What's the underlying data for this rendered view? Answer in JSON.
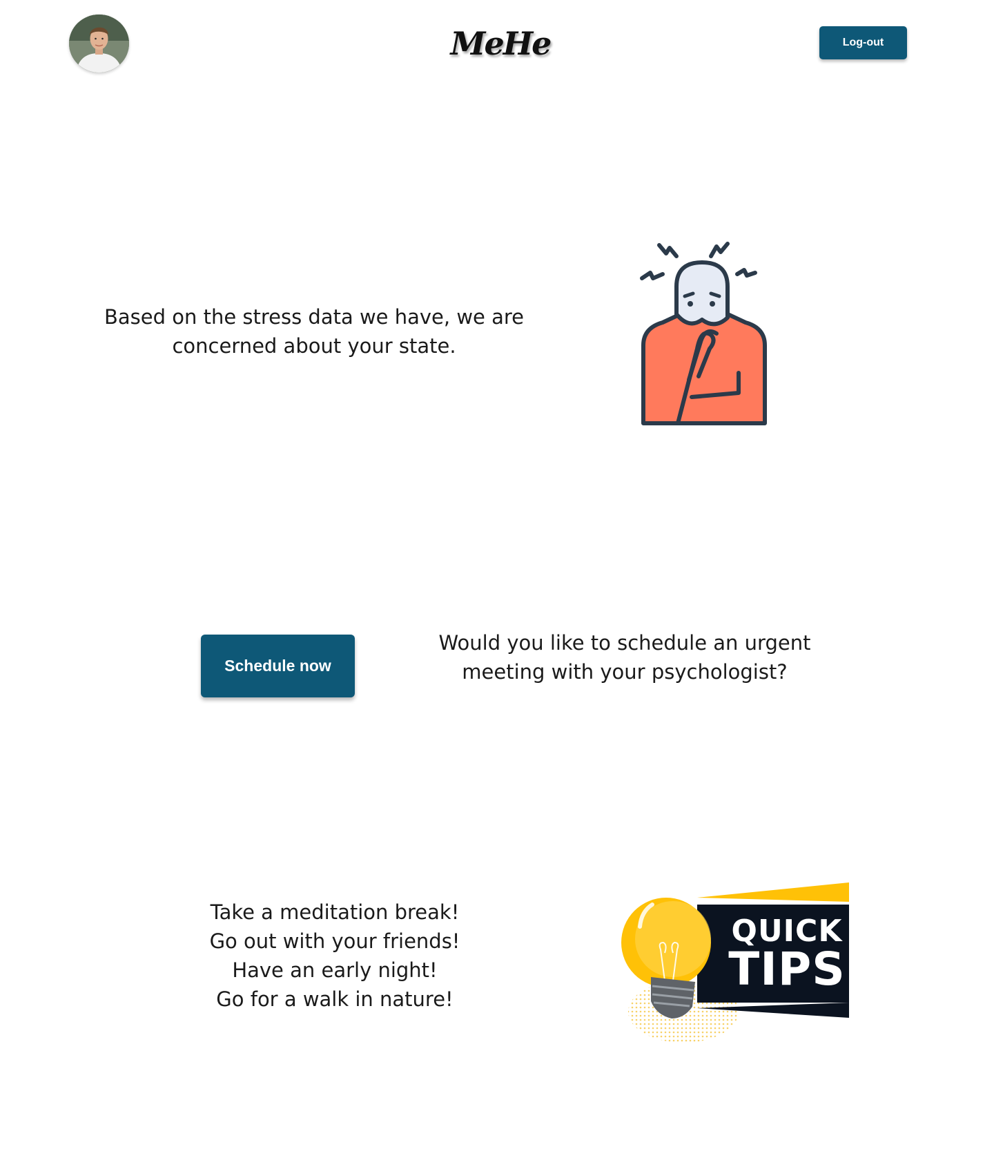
{
  "header": {
    "logo": "MeHe",
    "logout_label": "Log-out"
  },
  "concern": {
    "message": "Based on the stress data we have, we are concerned about your state."
  },
  "schedule": {
    "button_label": "Schedule now",
    "question": "Would you like to schedule an urgent meeting with your psychologist?"
  },
  "tips": {
    "items": [
      "Take a meditation break!",
      "Go out with your friends!",
      "Have an early night!",
      "Go for a walk in nature!"
    ],
    "badge_line1": "QUICK",
    "badge_line2": "TIPS"
  },
  "colors": {
    "primary": "#0e5877",
    "stress_body": "#ff7a5c",
    "stress_outline": "#2b3a4a",
    "bulb_yellow": "#ffc107",
    "badge_dark": "#0b1320"
  },
  "icons": {
    "avatar": "user-avatar",
    "stress": "stressed-person-icon",
    "tips": "lightbulb-icon"
  }
}
